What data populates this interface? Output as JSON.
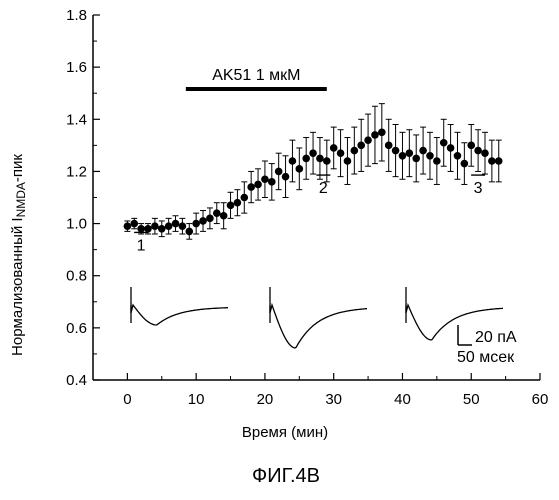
{
  "chart_data": {
    "type": "scatter",
    "ylabel_main": "Нормализованный I",
    "ylabel_sub": "NMDA",
    "ylabel_tail": "-пик",
    "xlabel": "Время (мин)",
    "xlim": [
      -5,
      60
    ],
    "ylim": [
      0.4,
      1.8
    ],
    "xticks": [
      0,
      10,
      20,
      30,
      40,
      50,
      60
    ],
    "yticks": [
      "0.4",
      "0.6",
      "0.8",
      "1.0",
      "1.2",
      "1.4",
      "1.6",
      "1.8"
    ],
    "drug_label": "AK51 1 мкМ",
    "drug_period": [
      8.5,
      29
    ],
    "marker_labels": [
      "1",
      "2",
      "3"
    ],
    "marker_times": [
      2,
      28.5,
      51
    ],
    "scale_bar": {
      "current": "20 пА",
      "time": "50 мсек"
    },
    "series": [
      {
        "x": [
          0,
          1,
          2,
          3,
          4,
          5,
          6,
          7,
          8,
          9,
          10,
          11,
          12,
          13,
          14,
          15,
          16,
          17,
          18,
          19,
          20,
          21,
          22,
          23,
          24,
          25,
          26,
          27,
          28,
          29,
          30,
          31,
          32,
          33,
          34,
          35,
          36,
          37,
          38,
          39,
          40,
          41,
          42,
          43,
          44,
          45,
          46,
          47,
          48,
          49,
          50,
          51,
          52,
          53,
          54
        ],
        "y": [
          0.99,
          1.0,
          0.98,
          0.98,
          0.99,
          0.98,
          0.99,
          1.0,
          0.99,
          0.97,
          1.0,
          1.01,
          1.02,
          1.04,
          1.03,
          1.07,
          1.08,
          1.1,
          1.14,
          1.15,
          1.17,
          1.16,
          1.2,
          1.18,
          1.24,
          1.21,
          1.25,
          1.27,
          1.25,
          1.24,
          1.29,
          1.27,
          1.24,
          1.28,
          1.3,
          1.32,
          1.34,
          1.35,
          1.3,
          1.28,
          1.26,
          1.27,
          1.25,
          1.28,
          1.26,
          1.24,
          1.31,
          1.29,
          1.26,
          1.23,
          1.3,
          1.28,
          1.27,
          1.24,
          1.24
        ],
        "err": [
          0.02,
          0.02,
          0.02,
          0.02,
          0.03,
          0.03,
          0.03,
          0.03,
          0.03,
          0.03,
          0.04,
          0.04,
          0.04,
          0.04,
          0.05,
          0.05,
          0.05,
          0.06,
          0.06,
          0.06,
          0.07,
          0.07,
          0.07,
          0.08,
          0.08,
          0.08,
          0.08,
          0.08,
          0.08,
          0.08,
          0.08,
          0.09,
          0.09,
          0.09,
          0.1,
          0.1,
          0.11,
          0.11,
          0.1,
          0.1,
          0.09,
          0.09,
          0.09,
          0.09,
          0.09,
          0.09,
          0.09,
          0.09,
          0.09,
          0.08,
          0.08,
          0.08,
          0.08,
          0.08,
          0.08
        ]
      }
    ]
  },
  "caption": "ФИГ.4В"
}
